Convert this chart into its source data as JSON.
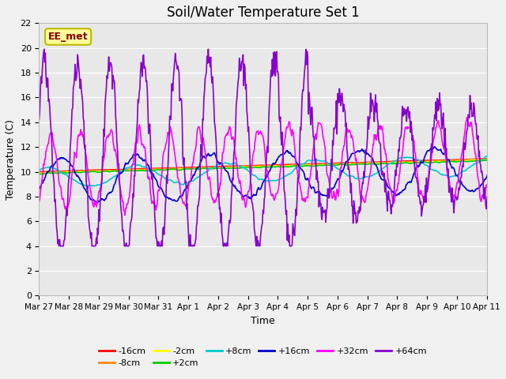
{
  "title": "Soil/Water Temperature Set 1",
  "xlabel": "Time",
  "ylabel": "Temperature (C)",
  "ylim": [
    0,
    22
  ],
  "yticks": [
    0,
    2,
    4,
    6,
    8,
    10,
    12,
    14,
    16,
    18,
    20,
    22
  ],
  "xtick_labels": [
    "Mar 27",
    "Mar 28",
    "Mar 29",
    "Mar 30",
    "Mar 31",
    "Apr 1",
    "Apr 2",
    "Apr 3",
    "Apr 4",
    "Apr 5",
    "Apr 6",
    "Apr 7",
    "Apr 8",
    "Apr 9",
    "Apr 10",
    "Apr 11"
  ],
  "series_colors": {
    "-16cm": "#ff0000",
    "-8cm": "#ff8800",
    "-2cm": "#ffff00",
    "+2cm": "#00cc00",
    "+8cm": "#00cccc",
    "+16cm": "#0000cc",
    "+32cm": "#ff00ff",
    "+64cm": "#8800cc"
  },
  "annotation_text": "EE_met",
  "annotation_color": "#880000",
  "annotation_bg": "#ffff99",
  "annotation_border": "#bbbb00",
  "background_color": "#e8e8e8",
  "grid_color": "#ffffff",
  "title_fontsize": 12,
  "fig_width": 6.4,
  "fig_height": 4.8,
  "dpi": 100
}
